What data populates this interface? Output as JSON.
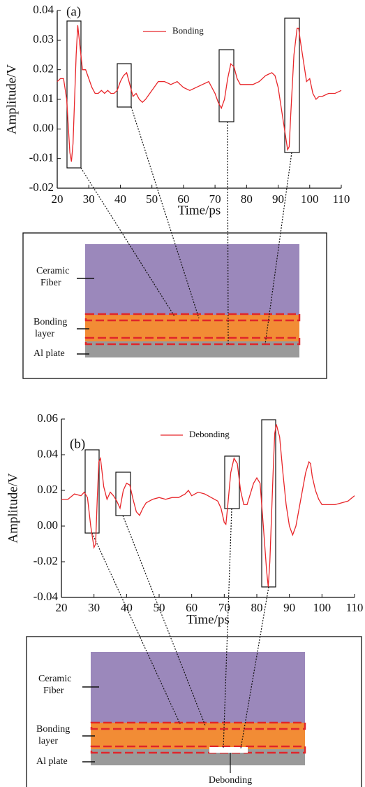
{
  "chart_data": [
    {
      "type": "line",
      "annotation": "(a)",
      "xlabel": "Time/ps",
      "ylabel": "Amplitude/V",
      "x": [
        20,
        21,
        22,
        23,
        24,
        24.5,
        25,
        26,
        26.5,
        27,
        28,
        29,
        30,
        31,
        32,
        33,
        34,
        35,
        36,
        37,
        38,
        39,
        40,
        41,
        42,
        43,
        44,
        45,
        46,
        47,
        48,
        50,
        52,
        54,
        56,
        58,
        60,
        62,
        64,
        66,
        68,
        70,
        71,
        72,
        73,
        74,
        75,
        76,
        77,
        78,
        80,
        82,
        84,
        86,
        88,
        89,
        90,
        91,
        92,
        93,
        93.5,
        94,
        95,
        96,
        96.5,
        97,
        98,
        99,
        100,
        101,
        102,
        103,
        104,
        106,
        108,
        110
      ],
      "series": [
        {
          "name": "Bonding",
          "color": "#e8262a",
          "values": [
            0.016,
            0.017,
            0.017,
            0.01,
            -0.008,
            -0.011,
            -0.005,
            0.025,
            0.035,
            0.03,
            0.02,
            0.02,
            0.017,
            0.014,
            0.012,
            0.012,
            0.013,
            0.012,
            0.013,
            0.012,
            0.012,
            0.013,
            0.016,
            0.018,
            0.019,
            0.015,
            0.011,
            0.012,
            0.01,
            0.009,
            0.01,
            0.013,
            0.016,
            0.016,
            0.015,
            0.016,
            0.014,
            0.013,
            0.014,
            0.015,
            0.016,
            0.012,
            0.009,
            0.007,
            0.01,
            0.017,
            0.022,
            0.021,
            0.017,
            0.015,
            0.015,
            0.015,
            0.016,
            0.018,
            0.019,
            0.018,
            0.014,
            0.007,
            0.0,
            -0.007,
            -0.006,
            0.005,
            0.025,
            0.034,
            0.034,
            0.03,
            0.023,
            0.016,
            0.017,
            0.012,
            0.01,
            0.011,
            0.011,
            0.012,
            0.012,
            0.013
          ]
        }
      ],
      "xlim": [
        20,
        110
      ],
      "xticks": [
        20,
        30,
        40,
        50,
        60,
        70,
        80,
        90,
        100,
        110
      ],
      "ylim": [
        -0.02,
        0.04
      ],
      "yticks": [
        -0.02,
        -0.01,
        {
          "value": 0,
          "label": "0.00"
        },
        0.01,
        0.02,
        0.03,
        0.04
      ]
    },
    {
      "type": "line",
      "annotation": "(b)",
      "xlabel": "Time/ps",
      "ylabel": "Amplitude/V",
      "x": [
        20,
        22,
        24,
        26,
        27,
        28,
        29,
        30,
        30.5,
        31,
        31.5,
        32,
        33,
        34,
        35,
        36,
        37,
        38,
        39,
        40,
        41,
        42,
        43,
        44,
        45,
        46,
        48,
        50,
        52,
        54,
        56,
        58,
        59,
        60,
        62,
        64,
        66,
        68,
        69,
        70,
        70.5,
        71,
        72,
        73,
        74,
        75,
        76,
        77,
        78,
        79,
        80,
        81,
        82,
        83,
        83.5,
        84,
        85,
        85.5,
        86,
        87,
        88,
        89,
        90,
        91,
        92,
        93,
        94,
        95,
        96,
        96.5,
        97,
        98,
        99,
        100,
        102,
        104,
        106,
        108,
        110
      ],
      "series": [
        {
          "name": "Debonding",
          "color": "#e8262a",
          "values": [
            0.015,
            0.015,
            0.018,
            0.017,
            0.019,
            0.016,
            0.0,
            -0.012,
            -0.01,
            0.015,
            0.036,
            0.038,
            0.022,
            0.015,
            0.019,
            0.017,
            0.014,
            0.01,
            0.02,
            0.024,
            0.023,
            0.015,
            0.008,
            0.006,
            0.01,
            0.013,
            0.015,
            0.016,
            0.015,
            0.016,
            0.016,
            0.018,
            0.02,
            0.017,
            0.019,
            0.018,
            0.016,
            0.014,
            0.01,
            0.002,
            0.001,
            0.01,
            0.03,
            0.038,
            0.035,
            0.02,
            0.012,
            0.012,
            0.018,
            0.024,
            0.027,
            0.024,
            0.0,
            -0.025,
            -0.034,
            -0.02,
            0.03,
            0.052,
            0.057,
            0.05,
            0.03,
            0.012,
            0.0,
            -0.005,
            0.0,
            0.01,
            0.02,
            0.03,
            0.036,
            0.035,
            0.028,
            0.02,
            0.015,
            0.012,
            0.012,
            0.012,
            0.013,
            0.014,
            0.017
          ]
        }
      ],
      "xlim": [
        20,
        110
      ],
      "xticks": [
        20,
        30,
        40,
        50,
        60,
        70,
        80,
        90,
        100,
        110
      ],
      "ylim": [
        -0.04,
        0.06
      ],
      "yticks": [
        -0.04,
        -0.02,
        {
          "value": 0,
          "label": "0.00"
        },
        0.02,
        0.04,
        0.06
      ]
    }
  ],
  "diagrams": [
    {
      "labels": [
        "Ceramic",
        "Fiber",
        "Bonding",
        "layer",
        "Al plate"
      ]
    },
    {
      "labels": [
        "Ceramic",
        "Fiber",
        "Bonding",
        "layer",
        "Al plate",
        "Debonding"
      ]
    }
  ]
}
